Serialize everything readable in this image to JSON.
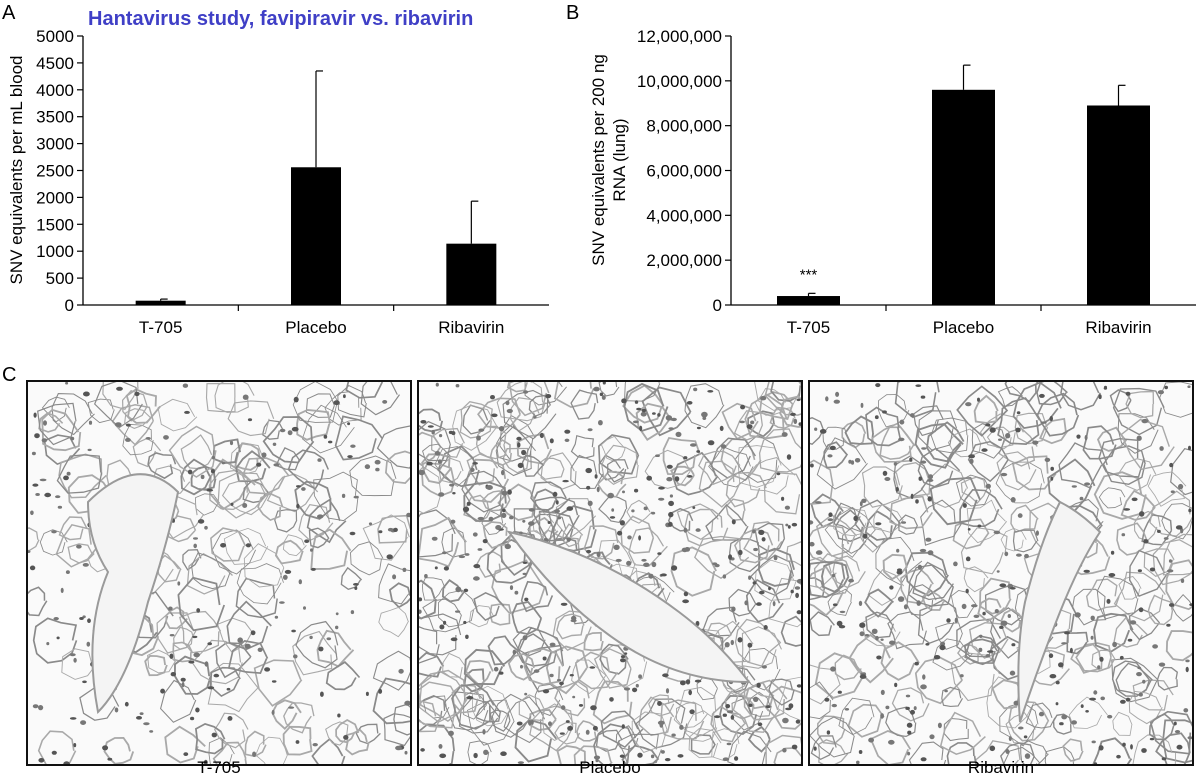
{
  "panels": {
    "a": "A",
    "b": "B",
    "c": "C"
  },
  "chart_data": [
    {
      "type": "bar",
      "title": "Hantavirus study, favipiravir vs. ribavirin",
      "ylabel": "SNV equivalents per mL blood",
      "xlabel": "",
      "categories": [
        "T-705",
        "Placebo",
        "Ribavirin"
      ],
      "values": [
        80,
        2560,
        1140
      ],
      "errors": [
        30,
        1790,
        790
      ],
      "ylim": [
        0,
        5000
      ],
      "yticks": [
        "0",
        "500",
        "1000",
        "1500",
        "2000",
        "2500",
        "3000",
        "3500",
        "4000",
        "4500",
        "5000"
      ],
      "bar_color": "#000000",
      "grid": false
    },
    {
      "type": "bar",
      "title": "",
      "ylabel_lines": [
        "SNV equivalents per 200 ng",
        "RNA (lung)"
      ],
      "xlabel": "",
      "categories": [
        "T-705",
        "Placebo",
        "Ribavirin"
      ],
      "values": [
        400000,
        9600000,
        8900000
      ],
      "errors": [
        120000,
        1100000,
        900000
      ],
      "yticks": [
        "0",
        "2,000,000",
        "4,000,000",
        "6,000,000",
        "8,000,000",
        "10,000,000",
        "12,000,000"
      ],
      "ylim": [
        0,
        12000000
      ],
      "annotations": [
        "***"
      ],
      "bar_color": "#000000",
      "grid": false
    }
  ],
  "micrographs": [
    {
      "label": "T-705"
    },
    {
      "label": "Placebo"
    },
    {
      "label": "Ribavirin"
    }
  ]
}
